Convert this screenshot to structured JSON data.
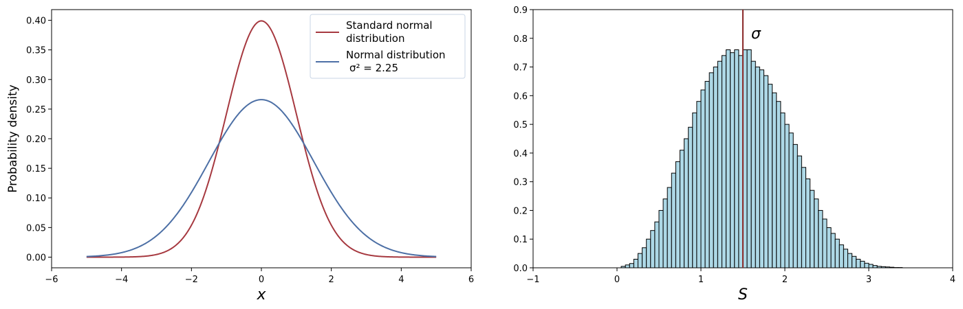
{
  "chart_data": [
    {
      "type": "line",
      "ylabel": "Probability density",
      "xlabel": "x",
      "xlim": [
        -6,
        6
      ],
      "ylim": [
        -0.018,
        0.418
      ],
      "xticks": [
        -6,
        -4,
        -2,
        0,
        2,
        4,
        6
      ],
      "xtick_labels": [
        "−6",
        "−4",
        "−2",
        "0",
        "2",
        "4",
        "6"
      ],
      "yticks": [
        0.0,
        0.05,
        0.1,
        0.15,
        0.2,
        0.25,
        0.3,
        0.35,
        0.4
      ],
      "ytick_labels": [
        "0.00",
        "0.05",
        "0.10",
        "0.15",
        "0.20",
        "0.25",
        "0.30",
        "0.35",
        "0.40"
      ],
      "grid": false,
      "legend_position": "top-right",
      "series": [
        {
          "name": "Standard normal distribution",
          "legend_lines": [
            "Standard normal",
            "distribution"
          ],
          "color": "#a6383f",
          "mean": 0,
          "variance": 1,
          "x": [
            -5,
            -4,
            -3,
            -2.5,
            -2,
            -1.5,
            -1,
            -0.5,
            0,
            0.5,
            1,
            1.5,
            2,
            2.5,
            3,
            4,
            5
          ],
          "y": [
            0.0,
            0.0001,
            0.0044,
            0.0175,
            0.054,
            0.1295,
            0.242,
            0.3521,
            0.3989,
            0.3521,
            0.242,
            0.1295,
            0.054,
            0.0175,
            0.0044,
            0.0001,
            0.0
          ]
        },
        {
          "name": "Normal distribution σ² = 2.25",
          "legend_lines": [
            "Normal distribution",
            "σ² = 2.25"
          ],
          "color": "#4c6fa5",
          "mean": 0,
          "variance": 2.25,
          "x": [
            -5,
            -4,
            -3,
            -2.5,
            -2,
            -1.5,
            -1,
            -0.5,
            0,
            0.5,
            1,
            1.5,
            2,
            2.5,
            3,
            4,
            5
          ],
          "y": [
            0.001,
            0.0076,
            0.036,
            0.0665,
            0.1093,
            0.1613,
            0.2129,
            0.2516,
            0.266,
            0.2516,
            0.2129,
            0.1613,
            0.1093,
            0.0665,
            0.036,
            0.0076,
            0.001
          ]
        }
      ]
    },
    {
      "type": "bar",
      "subtype": "histogram",
      "xlabel": "S",
      "ylabel": "",
      "xlim": [
        -1,
        4
      ],
      "ylim": [
        0,
        0.9
      ],
      "xticks": [
        -1,
        0,
        1,
        2,
        3,
        4
      ],
      "xtick_labels": [
        "−1",
        "0",
        "1",
        "2",
        "3",
        "4"
      ],
      "yticks": [
        0.0,
        0.1,
        0.2,
        0.3,
        0.4,
        0.5,
        0.6,
        0.7,
        0.8,
        0.9
      ],
      "ytick_labels": [
        "0.0",
        "0.1",
        "0.2",
        "0.3",
        "0.4",
        "0.5",
        "0.6",
        "0.7",
        "0.8",
        "0.9"
      ],
      "grid": false,
      "bar_color": "#add8e6",
      "edge_color": "#000000",
      "bin_start": 0.05,
      "bin_width": 0.05,
      "values": [
        0.005,
        0.01,
        0.015,
        0.03,
        0.05,
        0.07,
        0.1,
        0.13,
        0.16,
        0.2,
        0.24,
        0.28,
        0.33,
        0.37,
        0.41,
        0.45,
        0.49,
        0.54,
        0.58,
        0.62,
        0.65,
        0.68,
        0.7,
        0.72,
        0.74,
        0.76,
        0.75,
        0.76,
        0.74,
        0.76,
        0.76,
        0.72,
        0.7,
        0.69,
        0.67,
        0.64,
        0.61,
        0.58,
        0.54,
        0.5,
        0.47,
        0.43,
        0.39,
        0.35,
        0.31,
        0.27,
        0.24,
        0.2,
        0.17,
        0.14,
        0.12,
        0.1,
        0.08,
        0.065,
        0.05,
        0.04,
        0.03,
        0.023,
        0.016,
        0.012,
        0.008,
        0.005,
        0.004,
        0.003,
        0.002,
        0.001,
        0.001
      ],
      "reference_line": {
        "x": 1.5,
        "label": "σ",
        "color": "#8b2a2a"
      }
    }
  ]
}
